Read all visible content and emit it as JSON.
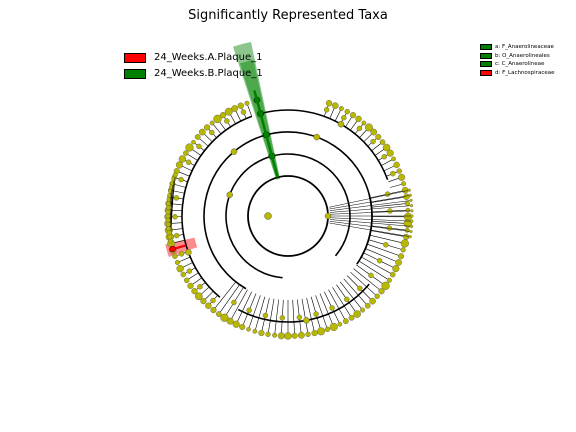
{
  "chart_data": {
    "type": "cladogram",
    "title": "Significantly Represented Taxa",
    "groups": [
      {
        "name": "24_Weeks.A.Plaque_1",
        "color": "#ff0000"
      },
      {
        "name": "24_Weeks.B.Plaque_1",
        "color": "#008000"
      }
    ],
    "highlighted_taxa": [
      {
        "key": "a",
        "label": "a: F_Anaerolineaceae",
        "group": "24_Weeks.B.Plaque_1",
        "color": "#008000"
      },
      {
        "key": "b",
        "label": "b: O_Anaerolineales",
        "group": "24_Weeks.B.Plaque_1",
        "color": "#008000"
      },
      {
        "key": "c",
        "label": "c: C_Anaerolineae",
        "group": "24_Weeks.B.Plaque_1",
        "color": "#008000"
      },
      {
        "key": "d",
        "label": "d: F_Lachnospiraceae",
        "group": "24_Weeks.A.Plaque_1",
        "color": "#ff0000"
      }
    ],
    "rings": 6,
    "node_color": "#b8b800",
    "edge_color": "#000000"
  }
}
